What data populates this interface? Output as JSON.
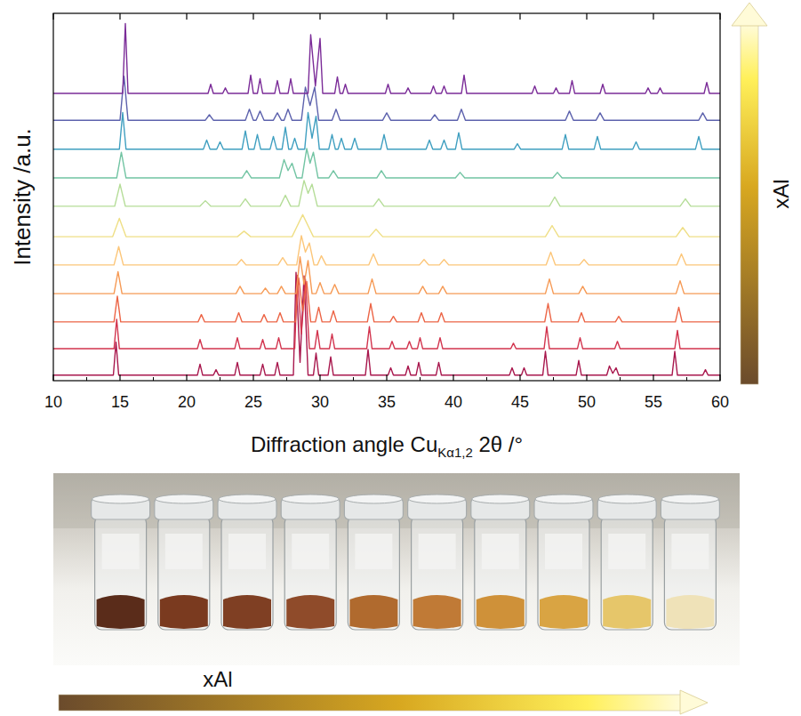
{
  "chart_data": {
    "type": "line",
    "x_label": [
      "Diffraction angle Cu",
      "Kα1,2",
      " 2θ /°"
    ],
    "y_label": "Intensity /a.u.",
    "annotations": [
      "xAl"
    ],
    "xlim": [
      10,
      60
    ],
    "xticks": [
      10,
      15,
      20,
      25,
      30,
      35,
      40,
      45,
      50,
      55,
      60
    ],
    "ylim": [
      0,
      100
    ],
    "tick_labels": "x",
    "grid": false,
    "series": [
      {
        "color": "#a8174d",
        "x": [
          10,
          14.5,
          14.7,
          14.9,
          20.8,
          21.0,
          21.2,
          22.0,
          22.2,
          22.4,
          23.6,
          23.8,
          24.0,
          25.5,
          25.7,
          25.9,
          26.6,
          26.8,
          27.0,
          28.0,
          28.2,
          28.5,
          28.8,
          29.1,
          29.5,
          29.7,
          29.9,
          30.6,
          30.8,
          31.0,
          33.4,
          33.6,
          33.8,
          35.1,
          35.3,
          35.5,
          36.4,
          36.6,
          36.8,
          37.2,
          37.4,
          37.6,
          38.7,
          38.9,
          39.1,
          44.2,
          44.4,
          44.6,
          45.1,
          45.3,
          45.5,
          46.7,
          46.9,
          47.1,
          49.2,
          49.4,
          49.6,
          51.5,
          51.7,
          51.95,
          52.2,
          52.4,
          56.4,
          56.6,
          56.8,
          58.7,
          58.9,
          59.1,
          60
        ],
        "values": [
          1.5,
          1.5,
          10.5,
          1.5,
          1.5,
          4.5,
          1.5,
          1.5,
          3,
          1.5,
          1.5,
          5,
          1.5,
          1.5,
          4.5,
          1.5,
          1.5,
          5,
          1.5,
          1.5,
          29.5,
          5,
          28.5,
          1.5,
          1.5,
          7.5,
          1.5,
          1.5,
          6.5,
          1.5,
          1.5,
          8.5,
          1.5,
          1.5,
          3.5,
          1.5,
          1.5,
          4,
          1.5,
          1.5,
          5,
          1.5,
          1.5,
          5,
          1.5,
          1.5,
          3.5,
          1.5,
          1.5,
          3.5,
          1.5,
          1.5,
          8,
          1.5,
          1.5,
          5.5,
          1.5,
          1.5,
          4,
          2,
          3.5,
          1.5,
          1.5,
          8,
          1.5,
          1.5,
          3,
          1.5,
          1.5
        ]
      },
      {
        "color": "#d2344e",
        "x": [
          10,
          14.55,
          14.75,
          14.95,
          20.8,
          21.0,
          21.2,
          23.6,
          23.8,
          24.0,
          25.5,
          25.7,
          25.9,
          26.7,
          26.9,
          27.1,
          28.1,
          28.3,
          28.6,
          28.9,
          29.2,
          29.6,
          29.8,
          30.0,
          30.7,
          30.9,
          31.1,
          33.5,
          33.7,
          33.9,
          35.2,
          35.4,
          35.6,
          36.5,
          36.7,
          36.9,
          37.3,
          37.5,
          37.7,
          38.8,
          39.0,
          39.2,
          44.3,
          44.5,
          44.7,
          46.8,
          47.0,
          47.2,
          49.3,
          49.5,
          49.7,
          52.1,
          52.3,
          52.5,
          56.6,
          56.8,
          57.0,
          60
        ],
        "values": [
          8.7,
          8.7,
          16.7,
          8.7,
          8.7,
          11.2,
          8.7,
          8.7,
          11.7,
          8.7,
          8.7,
          11.2,
          8.7,
          8.7,
          11.7,
          8.7,
          8.7,
          28.7,
          12.7,
          27.7,
          8.7,
          8.7,
          13.7,
          8.7,
          8.7,
          12.7,
          8.7,
          8.7,
          14.7,
          8.7,
          8.7,
          10.7,
          8.7,
          8.7,
          10.7,
          8.7,
          8.7,
          11.7,
          8.7,
          8.7,
          11.7,
          8.7,
          8.7,
          10.2,
          8.7,
          8.7,
          14.7,
          8.7,
          8.7,
          11.7,
          8.7,
          8.7,
          10.7,
          8.7,
          8.7,
          13.7,
          8.7,
          8.7
        ]
      },
      {
        "color": "#ec6445",
        "x": [
          10,
          14.55,
          14.8,
          15.05,
          20.85,
          21.1,
          21.35,
          23.65,
          23.9,
          24.15,
          25.55,
          25.8,
          26.05,
          26.75,
          27.0,
          27.25,
          28.15,
          28.4,
          28.7,
          29.0,
          29.3,
          29.65,
          29.9,
          30.15,
          30.75,
          31.0,
          31.25,
          33.55,
          33.8,
          34.05,
          35.25,
          35.5,
          35.75,
          37.35,
          37.6,
          37.85,
          38.85,
          39.1,
          39.35,
          46.85,
          47.1,
          47.35,
          49.35,
          49.6,
          49.85,
          52.15,
          52.4,
          52.65,
          56.65,
          56.9,
          57.15,
          60
        ],
        "values": [
          16,
          16,
          23,
          16,
          16,
          18,
          16,
          16,
          18.5,
          16,
          16,
          18,
          16,
          16,
          18.5,
          16,
          16,
          28,
          19,
          27,
          16,
          16,
          20,
          16,
          16,
          19,
          16,
          16,
          21,
          16,
          16,
          17.5,
          16,
          16,
          18.5,
          16,
          16,
          18.5,
          16,
          16,
          21,
          16,
          16,
          18.5,
          16,
          16,
          17.5,
          16,
          16,
          20,
          16,
          16
        ]
      },
      {
        "color": "#f69a55",
        "x": [
          10,
          14.55,
          14.85,
          15.15,
          23.7,
          24.0,
          24.3,
          25.6,
          25.9,
          26.2,
          26.8,
          27.1,
          27.4,
          28.2,
          28.5,
          28.8,
          29.1,
          29.4,
          29.7,
          30.0,
          30.3,
          30.8,
          31.1,
          31.4,
          33.6,
          33.9,
          34.2,
          37.4,
          37.7,
          38.0,
          38.9,
          39.2,
          39.5,
          46.9,
          47.2,
          47.5,
          49.4,
          49.7,
          50.0,
          56.7,
          57.0,
          57.3,
          60
        ],
        "values": [
          23.7,
          23.7,
          29.7,
          23.7,
          23.7,
          25.7,
          23.7,
          23.7,
          25.2,
          23.7,
          23.7,
          25.7,
          23.7,
          23.7,
          33.7,
          26.2,
          32.7,
          23.7,
          23.7,
          26.7,
          23.7,
          23.7,
          26.2,
          23.7,
          23.7,
          27.7,
          23.7,
          23.7,
          25.7,
          23.7,
          23.7,
          25.7,
          23.7,
          23.7,
          27.7,
          23.7,
          23.7,
          25.7,
          23.7,
          23.7,
          27.2,
          23.7,
          23.7
        ]
      },
      {
        "color": "#fcc679",
        "x": [
          10,
          14.55,
          14.9,
          15.25,
          23.75,
          24.1,
          24.45,
          26.85,
          27.2,
          27.55,
          28.25,
          28.6,
          28.9,
          29.2,
          29.55,
          29.8,
          30.1,
          30.45,
          33.65,
          34.0,
          34.35,
          37.45,
          37.8,
          38.15,
          38.95,
          39.3,
          39.65,
          46.95,
          47.3,
          47.65,
          49.45,
          49.8,
          50.15,
          56.75,
          57.1,
          57.45,
          60
        ],
        "values": [
          31.5,
          31.5,
          36.5,
          31.5,
          31.5,
          33,
          31.5,
          31.5,
          33.5,
          31.5,
          31.5,
          39.5,
          35,
          37.5,
          31.5,
          31.5,
          34,
          31.5,
          31.5,
          34.5,
          31.5,
          31.5,
          33,
          31.5,
          31.5,
          33,
          31.5,
          31.5,
          35,
          31.5,
          31.5,
          33,
          31.5,
          31.5,
          34.5,
          31.5,
          31.5
        ]
      },
      {
        "color": "#efdf86",
        "x": [
          10,
          14.45,
          14.95,
          15.45,
          23.8,
          24.3,
          24.8,
          27.9,
          28.7,
          29.5,
          33.7,
          34.2,
          34.7,
          46.9,
          47.4,
          47.9,
          56.7,
          57.2,
          57.7,
          60
        ],
        "values": [
          39.2,
          39.2,
          44.2,
          39.2,
          39.2,
          40.7,
          39.2,
          39.2,
          45.2,
          39.2,
          39.2,
          41.2,
          39.2,
          39.2,
          42.2,
          39.2,
          39.2,
          41.7,
          39.2,
          39.2
        ]
      },
      {
        "color": "#b5dd98",
        "x": [
          10,
          14.6,
          15.0,
          15.4,
          21.0,
          21.4,
          21.8,
          24.0,
          24.4,
          24.8,
          27.0,
          27.4,
          27.8,
          28.4,
          28.8,
          29.1,
          29.4,
          29.8,
          34.0,
          34.4,
          34.8,
          47.2,
          47.6,
          48.0,
          57.0,
          57.4,
          57.8,
          60
        ],
        "values": [
          47.5,
          47.5,
          53.5,
          47.5,
          47.5,
          49,
          47.5,
          47.5,
          49.5,
          47.5,
          47.5,
          50.5,
          47.5,
          47.5,
          54.5,
          51,
          53.5,
          47.5,
          47.5,
          49.5,
          47.5,
          47.5,
          50,
          47.5,
          47.5,
          49.5,
          47.5,
          47.5
        ]
      },
      {
        "color": "#72c4a3",
        "x": [
          10,
          14.75,
          15.1,
          15.45,
          24.15,
          24.5,
          24.85,
          26.95,
          27.3,
          27.6,
          27.9,
          28.25,
          28.65,
          29.0,
          29.25,
          29.5,
          29.85,
          30.65,
          31.0,
          31.35,
          34.25,
          34.6,
          34.95,
          40.15,
          40.5,
          40.85,
          47.45,
          47.8,
          48.15,
          60
        ],
        "values": [
          55.2,
          55.2,
          62.2,
          55.2,
          55.2,
          57.2,
          55.2,
          55.2,
          60.2,
          57.2,
          59.2,
          55.2,
          55.2,
          63.2,
          59.2,
          62.2,
          55.2,
          55.2,
          57.2,
          55.2,
          55.2,
          57.2,
          55.2,
          55.2,
          56.7,
          55.2,
          55.2,
          56.7,
          55.2,
          55.2
        ]
      },
      {
        "color": "#3f9fc0",
        "x": [
          10,
          14.95,
          15.2,
          15.45,
          21.25,
          21.5,
          21.75,
          22.25,
          22.5,
          22.75,
          24.15,
          24.4,
          24.65,
          25.05,
          25.3,
          25.55,
          26.25,
          26.5,
          26.75,
          27.15,
          27.4,
          27.65,
          27.85,
          28.1,
          28.35,
          28.85,
          29.1,
          29.4,
          29.7,
          29.95,
          30.65,
          30.9,
          31.15,
          31.35,
          31.6,
          31.85,
          32.35,
          32.6,
          32.85,
          34.55,
          34.8,
          35.05,
          37.95,
          38.2,
          38.45,
          39.05,
          39.3,
          39.55,
          40.15,
          40.4,
          40.65,
          44.55,
          44.8,
          45.05,
          48.15,
          48.4,
          48.65,
          50.55,
          50.8,
          51.05,
          53.45,
          53.7,
          53.95,
          58.15,
          58.4,
          58.65,
          60
        ],
        "values": [
          63,
          63,
          73,
          63,
          63,
          65.5,
          63,
          63,
          65,
          63,
          63,
          68,
          63,
          63,
          67,
          63,
          63,
          66.5,
          63,
          63,
          69,
          63,
          63,
          66,
          63,
          63,
          73,
          66,
          72,
          63,
          63,
          67,
          63,
          63,
          66,
          63,
          63,
          66,
          63,
          63,
          67,
          63,
          63,
          65.5,
          63,
          63,
          65.5,
          63,
          63,
          67.5,
          63,
          63,
          64.5,
          63,
          63,
          67,
          63,
          63,
          66.5,
          63,
          63,
          65,
          63,
          63,
          66.5,
          63,
          63
        ]
      },
      {
        "color": "#5d62ad",
        "x": [
          10,
          15.0,
          15.3,
          15.6,
          21.4,
          21.7,
          22.0,
          24.4,
          24.7,
          25.0,
          25.2,
          25.5,
          25.8,
          26.5,
          26.8,
          27.1,
          27.3,
          27.6,
          27.9,
          28.6,
          28.9,
          29.25,
          29.6,
          29.9,
          30.9,
          31.2,
          31.5,
          34.7,
          35.0,
          35.3,
          38.3,
          38.6,
          38.9,
          40.3,
          40.6,
          40.9,
          48.4,
          48.7,
          49.0,
          50.7,
          51.0,
          51.3,
          58.4,
          58.7,
          59.0,
          60
        ],
        "values": [
          70.9,
          70.9,
          82.9,
          70.9,
          70.9,
          72.4,
          70.9,
          70.9,
          73.9,
          70.9,
          70.9,
          73.4,
          70.9,
          70.9,
          72.9,
          70.9,
          70.9,
          73.9,
          70.9,
          70.9,
          79.9,
          74.9,
          79.9,
          70.9,
          70.9,
          73.9,
          70.9,
          70.9,
          72.9,
          70.9,
          70.9,
          72.4,
          70.9,
          70.9,
          73.9,
          70.9,
          70.9,
          73.4,
          70.9,
          70.9,
          72.9,
          70.9,
          70.9,
          72.9,
          70.9,
          70.9
        ]
      },
      {
        "color": "#7b2c98",
        "x": [
          10,
          15.2,
          15.4,
          15.6,
          21.6,
          21.8,
          22.0,
          22.7,
          22.9,
          23.1,
          24.6,
          24.8,
          25.0,
          25.3,
          25.5,
          25.7,
          26.6,
          26.8,
          27.0,
          27.6,
          27.8,
          28.0,
          29.1,
          29.3,
          29.65,
          30.0,
          30.2,
          31.1,
          31.3,
          31.5,
          31.7,
          31.9,
          32.1,
          34.9,
          35.1,
          35.3,
          36.4,
          36.6,
          36.8,
          38.3,
          38.5,
          38.7,
          39.1,
          39.3,
          39.5,
          40.6,
          40.8,
          41.0,
          45.9,
          46.1,
          46.3,
          47.5,
          47.7,
          47.9,
          48.7,
          48.9,
          49.1,
          51.0,
          51.2,
          51.4,
          54.4,
          54.6,
          54.8,
          55.3,
          55.5,
          55.7,
          58.8,
          59.0,
          59.2,
          60
        ],
        "values": [
          78.2,
          78.2,
          97.2,
          78.2,
          78.2,
          80.7,
          78.2,
          78.2,
          79.7,
          78.2,
          78.2,
          83.2,
          78.2,
          78.2,
          82.2,
          78.2,
          78.2,
          81.7,
          78.2,
          78.2,
          82.2,
          78.2,
          78.2,
          94.2,
          80.2,
          93.2,
          78.2,
          78.2,
          82.7,
          78.2,
          78.2,
          80.7,
          78.2,
          78.2,
          80.7,
          78.2,
          78.2,
          79.7,
          78.2,
          78.2,
          80.2,
          78.2,
          78.2,
          80.2,
          78.2,
          78.2,
          83.2,
          78.2,
          78.2,
          80.2,
          78.2,
          78.2,
          79.7,
          78.2,
          78.2,
          81.7,
          78.2,
          78.2,
          80.7,
          78.2,
          78.2,
          79.7,
          78.2,
          78.2,
          79.7,
          78.2,
          78.2,
          81.2,
          78.2,
          78.2
        ]
      }
    ]
  },
  "photo": {
    "label": "xAl",
    "colors": [
      "#5a2c1a",
      "#7a3a1f",
      "#7f3f23",
      "#8f4b2a",
      "#b06a2e",
      "#c07a36",
      "#cf9139",
      "#d9a443",
      "#e6c66a",
      "#efe2b8"
    ]
  }
}
